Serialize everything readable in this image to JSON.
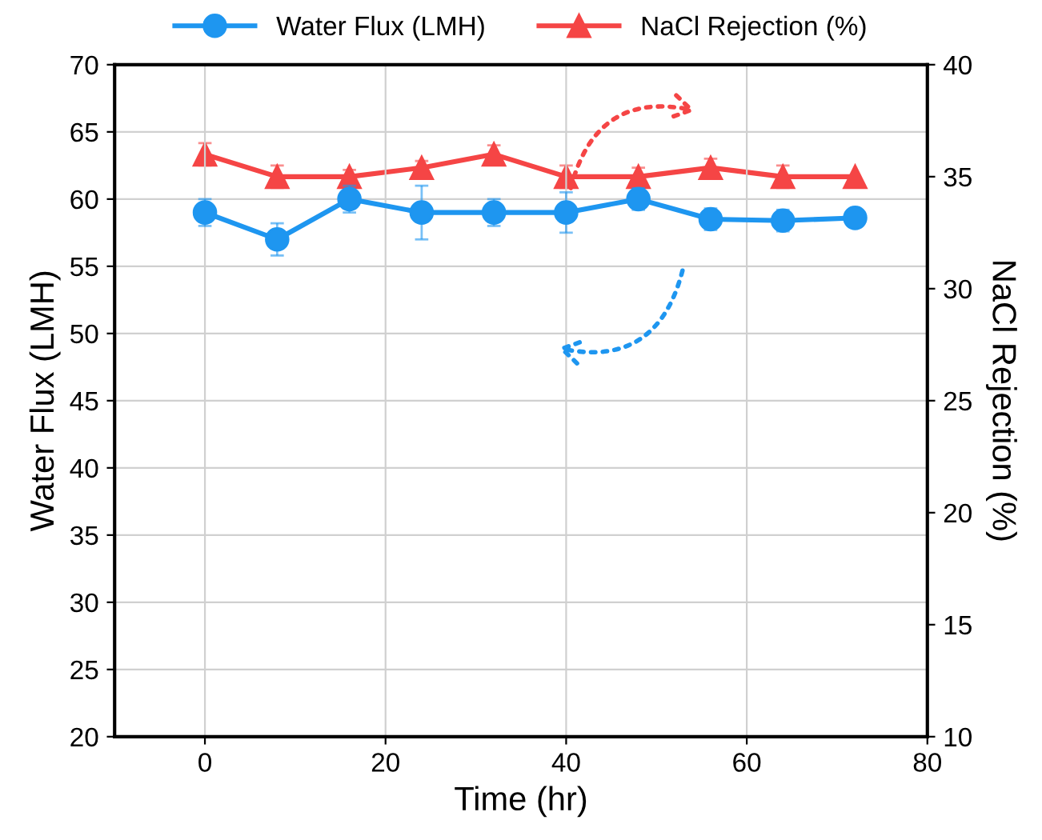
{
  "chart_data": {
    "type": "line",
    "xlabel": "Time (hr)",
    "ylabel": "Water Flux (LMH)",
    "y2label": "NaCl Rejection (%)",
    "x": [
      0,
      8,
      16,
      24,
      32,
      40,
      48,
      56,
      64,
      72
    ],
    "series": [
      {
        "name": "Water Flux (LMH)",
        "color": "#1e96f0",
        "marker": "circle",
        "values": [
          59,
          57,
          60,
          59,
          59,
          59,
          60,
          58.5,
          58.4,
          58.6
        ],
        "errors": [
          1,
          1.2,
          1,
          2,
          1,
          1.5,
          0.8,
          0.8,
          0.8,
          null
        ]
      },
      {
        "name": "NaCl Rejection (%)",
        "color": "#f54545",
        "marker": "triangle",
        "axis": "y2",
        "values": [
          36,
          35,
          35,
          35.4,
          36,
          35,
          35,
          35.4,
          35,
          35
        ],
        "errors": [
          0.5,
          0.5,
          0.3,
          0.3,
          0.4,
          0.5,
          0.4,
          0.4,
          0.5,
          null
        ]
      }
    ],
    "xlim": [
      -10,
      80
    ],
    "xticks": [
      0,
      20,
      40,
      60,
      80
    ],
    "ylim": [
      20,
      70
    ],
    "yticks": [
      20,
      25,
      30,
      35,
      40,
      45,
      50,
      55,
      60,
      65,
      70
    ],
    "y2lim": [
      10,
      40
    ],
    "y2ticks": [
      10,
      15,
      20,
      25,
      30,
      35,
      40
    ],
    "grid": true,
    "legend": "top",
    "line_style": "solid"
  }
}
